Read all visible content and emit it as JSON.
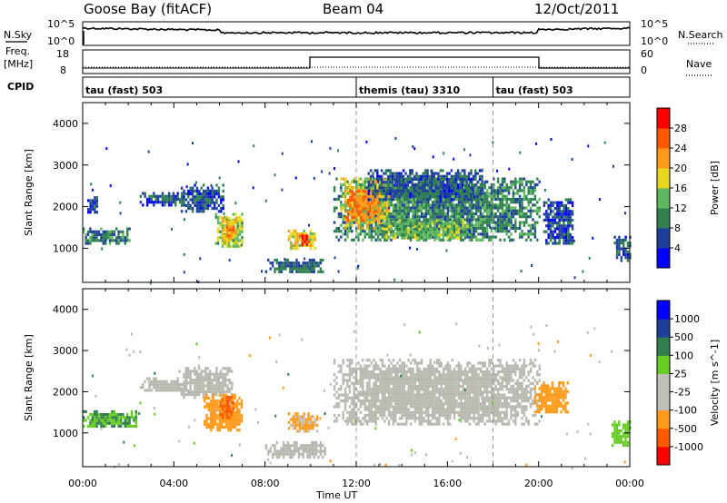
{
  "header": {
    "station": "Goose Bay (fitACF)",
    "beam": "Beam 04",
    "date": "12/Oct/2011"
  },
  "strip_labels": {
    "nsky": "N.Sky",
    "nsky_hi": "10^5",
    "nsky_lo": "10^0",
    "nsearch": "N.Search",
    "nsearch_hi": "10^5",
    "nsearch_lo": "10^0",
    "freq": "Freq.",
    "freq_unit": "[MHz]",
    "freq_hi": "18",
    "freq_lo": "8",
    "nave": "Nave",
    "nave_hi": "60",
    "nave_lo": "0",
    "cpid": "CPID"
  },
  "cpid_segments": [
    {
      "label": "tau (fast) 503",
      "start_hr": 0,
      "end_hr": 12
    },
    {
      "label": "themis (tau) 3310",
      "start_hr": 12,
      "end_hr": 18
    },
    {
      "label": "tau (fast) 503",
      "start_hr": 18,
      "end_hr": 24
    }
  ],
  "colors": {
    "power_scale": [
      "#0000ff",
      "#1f3f9c",
      "#2f7f4f",
      "#5fb85f",
      "#e6d61e",
      "#ff9a1a",
      "#ff5a00",
      "#ff0000"
    ],
    "velocity_scale": [
      "#ff0000",
      "#ff5a00",
      "#ff9a1a",
      "#c0c0b8",
      "#c0c0b8",
      "#66cc22",
      "#2f7f4f",
      "#1f3f9c",
      "#0000ff"
    ],
    "ground_scatter": "#b8b8b0"
  },
  "chart_data": [
    {
      "type": "heatmap",
      "panel": "power",
      "ylabel": "Slant Range [km]",
      "xlabel": "",
      "colorbar_label": "Power [dB]",
      "colorbar_ticks": [
        "4",
        "8",
        "12",
        "16",
        "20",
        "24",
        "28"
      ],
      "colorbar_range": [
        0,
        32
      ],
      "ylim": [
        180,
        4500
      ],
      "yticks": [
        "1000",
        "2000",
        "3000",
        "4000"
      ],
      "xlim_hours": [
        0,
        24
      ],
      "regions": [
        {
          "t0": 0.0,
          "t1": 2.2,
          "r0": 1150,
          "r1": 1500,
          "value": 9
        },
        {
          "t0": 0.2,
          "t1": 0.6,
          "r0": 1900,
          "r1": 2250,
          "value": 6
        },
        {
          "t0": 2.5,
          "t1": 4.6,
          "r0": 2050,
          "r1": 2350,
          "value": 7
        },
        {
          "t0": 4.3,
          "t1": 6.2,
          "r0": 1900,
          "r1": 2550,
          "value": 7
        },
        {
          "t0": 5.8,
          "t1": 7.0,
          "r0": 1050,
          "r1": 1850,
          "value": 15
        },
        {
          "t0": 6.1,
          "t1": 6.7,
          "r0": 1150,
          "r1": 1750,
          "value": 21
        },
        {
          "t0": 9.0,
          "t1": 10.2,
          "r0": 1000,
          "r1": 1450,
          "value": 18
        },
        {
          "t0": 9.5,
          "t1": 9.9,
          "r0": 1100,
          "r1": 1400,
          "value": 28
        },
        {
          "t0": 8.0,
          "t1": 10.6,
          "r0": 430,
          "r1": 750,
          "value": 8
        },
        {
          "t0": 11.0,
          "t1": 20.0,
          "r0": 1200,
          "r1": 2700,
          "value": 10
        },
        {
          "t0": 11.3,
          "t1": 13.5,
          "r0": 1500,
          "r1": 2700,
          "value": 18
        },
        {
          "t0": 11.5,
          "t1": 13.0,
          "r0": 1700,
          "r1": 2400,
          "value": 24
        },
        {
          "t0": 13.0,
          "t1": 17.0,
          "r0": 1250,
          "r1": 1700,
          "value": 14
        },
        {
          "t0": 12.5,
          "t1": 17.5,
          "r0": 2200,
          "r1": 2900,
          "value": 7
        },
        {
          "t0": 20.2,
          "t1": 21.5,
          "r0": 1100,
          "r1": 2200,
          "value": 6
        },
        {
          "t0": 23.3,
          "t1": 24.0,
          "r0": 700,
          "r1": 1300,
          "value": 7
        }
      ]
    },
    {
      "type": "heatmap",
      "panel": "velocity",
      "ylabel": "Slant Range [km]",
      "xlabel": "Time UT",
      "colorbar_label": "Velocity [m s^-1]",
      "colorbar_ticks": [
        "-1000",
        "-500",
        "-100",
        "-25",
        "25",
        "100",
        "500",
        "1000"
      ],
      "ylim": [
        180,
        4500
      ],
      "yticks": [
        "1000",
        "2000",
        "3000",
        "4000"
      ],
      "xlim_hours": [
        0,
        24
      ],
      "xticks": [
        "00:00",
        "04:00",
        "08:00",
        "12:00",
        "16:00",
        "20:00",
        "00:00"
      ],
      "regions": [
        {
          "t0": 0.0,
          "t1": 2.3,
          "r0": 1150,
          "r1": 1550,
          "kind": "velocity",
          "value": 100
        },
        {
          "t0": 2.5,
          "t1": 4.6,
          "r0": 2000,
          "r1": 2350,
          "kind": "ground"
        },
        {
          "t0": 4.2,
          "t1": 6.5,
          "r0": 1850,
          "r1": 2600,
          "kind": "ground"
        },
        {
          "t0": 5.3,
          "t1": 7.0,
          "r0": 1050,
          "r1": 1950,
          "kind": "velocity",
          "value": -200
        },
        {
          "t0": 6.0,
          "t1": 6.6,
          "r0": 1350,
          "r1": 1900,
          "kind": "velocity",
          "value": -600
        },
        {
          "t0": 9.0,
          "t1": 10.3,
          "r0": 1050,
          "r1": 1500,
          "kind": "velocity",
          "value": -120
        },
        {
          "t0": 8.0,
          "t1": 10.6,
          "r0": 400,
          "r1": 800,
          "kind": "ground"
        },
        {
          "t0": 11.0,
          "t1": 20.0,
          "r0": 1200,
          "r1": 2800,
          "kind": "ground"
        },
        {
          "t0": 19.8,
          "t1": 21.3,
          "r0": 1500,
          "r1": 2250,
          "kind": "velocity",
          "value": -200
        },
        {
          "t0": 23.2,
          "t1": 24.0,
          "r0": 700,
          "r1": 1300,
          "kind": "velocity",
          "value": 60
        }
      ]
    }
  ]
}
